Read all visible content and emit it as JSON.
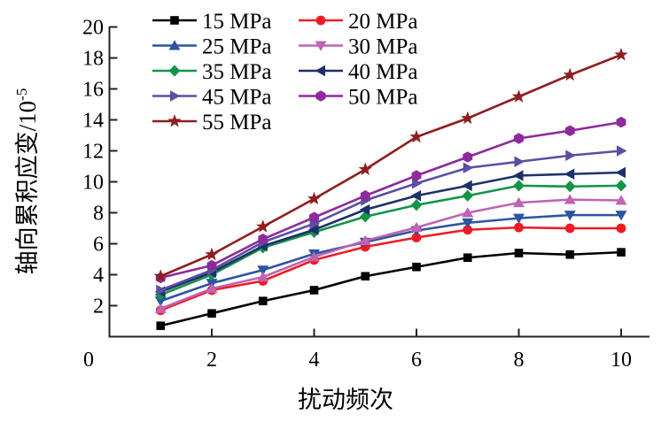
{
  "chart_data": {
    "type": "line",
    "title": "",
    "xlabel": "扰动频次",
    "ylabel": "轴向累积应变/10⁻⁵",
    "ylabel_base": "轴向累积应变/10",
    "ylabel_exponent": "-5",
    "xlim": [
      0,
      10
    ],
    "ylim": [
      0,
      20
    ],
    "xticks": [
      0,
      2,
      4,
      6,
      8,
      10
    ],
    "xtick_labels": [
      "0",
      "2",
      "4",
      "6",
      "8",
      "10"
    ],
    "yticks": [
      2,
      4,
      6,
      8,
      10,
      12,
      14,
      16,
      18,
      20
    ],
    "ytick_labels": [
      "2",
      "4",
      "6",
      "8",
      "10",
      "12",
      "14",
      "16",
      "18",
      "20"
    ],
    "grid": false,
    "legend_position": "top-left-inside-two-columns-no-frame",
    "x": [
      1,
      2,
      3,
      4,
      5,
      6,
      7,
      8,
      9,
      10
    ],
    "series": [
      {
        "name": "15 MPa",
        "color": "#000000",
        "marker_legend": "square",
        "marker_plot": "square",
        "values": [
          0.7,
          1.5,
          2.3,
          3.0,
          3.9,
          4.5,
          5.1,
          5.4,
          5.3,
          5.45
        ]
      },
      {
        "name": "20 MPa",
        "color": "#ed1c24",
        "marker_legend": "circle",
        "marker_plot": "circle",
        "values": [
          1.7,
          3.0,
          3.6,
          4.95,
          5.8,
          6.4,
          6.9,
          7.05,
          7.0,
          7.0
        ]
      },
      {
        "name": "25 MPa",
        "color": "#2d54a1",
        "marker_legend": "triangle-up",
        "marker_plot": "triangle-down",
        "values": [
          2.3,
          3.45,
          4.3,
          5.35,
          6.1,
          6.85,
          7.35,
          7.65,
          7.85,
          7.85
        ]
      },
      {
        "name": "30 MPa",
        "color": "#bf63b3",
        "marker_legend": "triangle-down",
        "marker_plot": "triangle-up",
        "values": [
          1.8,
          3.1,
          3.85,
          5.15,
          6.2,
          7.05,
          8.0,
          8.65,
          8.85,
          8.8
        ]
      },
      {
        "name": "35 MPa",
        "color": "#129447",
        "marker_legend": "diamond",
        "marker_plot": "diamond",
        "values": [
          2.7,
          4.0,
          5.75,
          6.75,
          7.75,
          8.5,
          9.1,
          9.75,
          9.7,
          9.75
        ]
      },
      {
        "name": "40 MPa",
        "color": "#1d3168",
        "marker_legend": "triangle-left",
        "marker_plot": "triangle-left",
        "values": [
          2.9,
          4.15,
          5.85,
          6.9,
          8.2,
          9.1,
          9.75,
          10.4,
          10.5,
          10.6
        ]
      },
      {
        "name": "45 MPa",
        "color": "#5a4fa2",
        "marker_legend": "triangle-right",
        "marker_plot": "triangle-right",
        "values": [
          3.0,
          4.3,
          6.1,
          7.3,
          8.8,
          9.9,
          10.9,
          11.3,
          11.7,
          12.0
        ]
      },
      {
        "name": "50 MPa",
        "color": "#8e2a9b",
        "marker_legend": "hexagon",
        "marker_plot": "hexagon",
        "values": [
          3.8,
          4.6,
          6.3,
          7.7,
          9.1,
          10.4,
          11.6,
          12.8,
          13.3,
          13.85
        ]
      },
      {
        "name": "55 MPa",
        "color": "#8f1d21",
        "marker_legend": "star",
        "marker_plot": "star",
        "values": [
          3.9,
          5.3,
          7.1,
          8.9,
          10.8,
          12.9,
          14.1,
          15.5,
          16.9,
          18.2
        ]
      }
    ]
  }
}
